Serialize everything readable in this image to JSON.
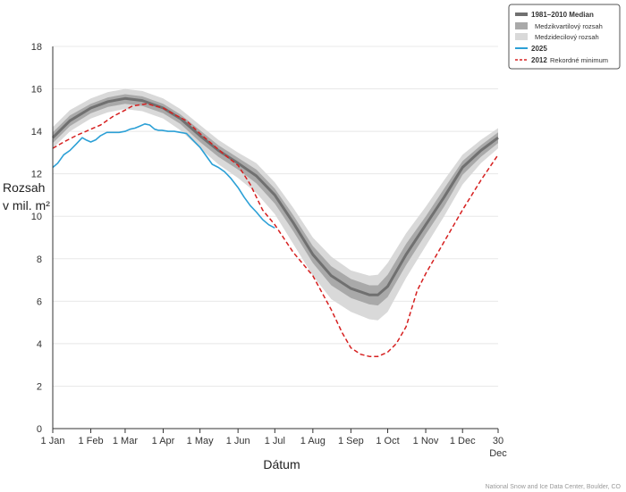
{
  "chart_data": {
    "type": "line",
    "ylabel_line1": "Rozsah",
    "ylabel_line2": "v mil. m²",
    "xlabel": "Dátum",
    "ylim": [
      0,
      18
    ],
    "grid": true,
    "legend_placement": "top-right",
    "y_ticks": [
      "0",
      "2",
      "4",
      "6",
      "8",
      "10",
      "12",
      "14",
      "16",
      "18"
    ],
    "x_ticks": [
      {
        "label": "1 Jan",
        "doy": 1
      },
      {
        "label": "1 Feb",
        "doy": 32
      },
      {
        "label": "1 Mar",
        "doy": 60
      },
      {
        "label": "1 Apr",
        "doy": 91
      },
      {
        "label": "1 May",
        "doy": 121
      },
      {
        "label": "1 Jun",
        "doy": 152
      },
      {
        "label": "1 Jul",
        "doy": 182
      },
      {
        "label": "1 Aug",
        "doy": 213
      },
      {
        "label": "1 Sep",
        "doy": 244
      },
      {
        "label": "1 Oct",
        "doy": 274
      },
      {
        "label": "1 Nov",
        "doy": 305
      },
      {
        "label": "1 Dec",
        "doy": 335
      },
      {
        "label": "30",
        "label2": "Dec",
        "doy": 364
      }
    ],
    "legend": {
      "median": "1981–2010 Median",
      "iqr": "Medzikvartilový rozsah",
      "idr": "Medzidecilový rozsah",
      "y2025": "2025",
      "y2012": "2012",
      "y2012_note": "Rekordné minimum"
    },
    "colors": {
      "median": "#707070",
      "iqr": "#a9a9a9",
      "idr": "#d9d9d9",
      "y2025": "#2ca0d6",
      "y2012": "#d62020",
      "grid": "#e8e8e8"
    },
    "series": [
      {
        "name": "1981–2010 Median",
        "x": [
          1,
          15,
          32,
          46,
          60,
          74,
          91,
          105,
          121,
          136,
          152,
          167,
          182,
          197,
          213,
          228,
          244,
          259,
          266,
          274,
          289,
          305,
          320,
          335,
          350,
          364
        ],
        "values": [
          13.7,
          14.5,
          15.1,
          15.4,
          15.55,
          15.45,
          15.1,
          14.6,
          13.8,
          13.1,
          12.5,
          11.9,
          11.0,
          9.7,
          8.2,
          7.2,
          6.6,
          6.3,
          6.3,
          6.7,
          8.2,
          9.6,
          10.9,
          12.3,
          13.1,
          13.7
        ]
      },
      {
        "name": "2025",
        "x": [
          1,
          5,
          10,
          15,
          20,
          25,
          28,
          32,
          36,
          40,
          45,
          50,
          55,
          60,
          64,
          68,
          72,
          76,
          80,
          84,
          87,
          90,
          95,
          100,
          105,
          110,
          115,
          121,
          126,
          131,
          136,
          141,
          146,
          152,
          157,
          162,
          167,
          172,
          177,
          182
        ],
        "values": [
          12.3,
          12.5,
          12.9,
          13.1,
          13.4,
          13.7,
          13.6,
          13.5,
          13.6,
          13.8,
          13.95,
          13.95,
          13.95,
          14.0,
          14.1,
          14.15,
          14.25,
          14.35,
          14.3,
          14.1,
          14.05,
          14.05,
          14.0,
          14.0,
          13.95,
          13.9,
          13.6,
          13.25,
          12.85,
          12.45,
          12.3,
          12.1,
          11.8,
          11.35,
          10.9,
          10.5,
          10.2,
          9.85,
          9.6,
          9.45
        ]
      },
      {
        "name": "2012",
        "x": [
          1,
          10,
          20,
          32,
          40,
          50,
          60,
          66,
          72,
          78,
          84,
          91,
          100,
          110,
          121,
          131,
          141,
          152,
          162,
          172,
          182,
          197,
          213,
          228,
          237,
          244,
          252,
          259,
          266,
          274,
          281,
          289,
          298,
          305,
          320,
          335,
          350,
          364
        ],
        "values": [
          13.2,
          13.5,
          13.8,
          14.1,
          14.3,
          14.7,
          15.0,
          15.2,
          15.25,
          15.3,
          15.2,
          15.1,
          14.8,
          14.5,
          13.9,
          13.4,
          12.9,
          12.4,
          11.5,
          10.3,
          9.6,
          8.3,
          7.2,
          5.6,
          4.5,
          3.8,
          3.5,
          3.4,
          3.4,
          3.6,
          4.0,
          4.8,
          6.5,
          7.3,
          8.8,
          10.3,
          11.7,
          12.9
        ]
      }
    ],
    "bands": {
      "x": [
        1,
        15,
        32,
        46,
        60,
        74,
        91,
        105,
        121,
        136,
        152,
        167,
        182,
        197,
        213,
        228,
        244,
        259,
        266,
        274,
        289,
        305,
        320,
        335,
        350,
        364
      ],
      "iqr_upper": [
        13.95,
        14.75,
        15.3,
        15.6,
        15.75,
        15.65,
        15.3,
        14.8,
        14.05,
        13.35,
        12.75,
        12.2,
        11.3,
        10.05,
        8.6,
        7.65,
        7.05,
        6.75,
        6.75,
        7.25,
        8.7,
        10.0,
        11.3,
        12.6,
        13.35,
        13.95
      ],
      "iqr_lower": [
        13.45,
        14.25,
        14.85,
        15.15,
        15.3,
        15.2,
        14.85,
        14.35,
        13.5,
        12.8,
        12.2,
        11.55,
        10.6,
        9.3,
        7.8,
        6.75,
        6.15,
        5.85,
        5.8,
        6.2,
        7.7,
        9.15,
        10.45,
        11.95,
        12.8,
        13.45
      ],
      "idr_upper": [
        14.2,
        15.0,
        15.55,
        15.85,
        16.0,
        15.9,
        15.55,
        15.05,
        14.3,
        13.6,
        13.0,
        12.5,
        11.6,
        10.4,
        9.0,
        8.1,
        7.45,
        7.2,
        7.25,
        7.8,
        9.2,
        10.45,
        11.7,
        12.9,
        13.6,
        14.15
      ],
      "idr_lower": [
        13.2,
        14.0,
        14.6,
        14.9,
        15.05,
        14.95,
        14.6,
        14.05,
        13.2,
        12.45,
        11.8,
        11.1,
        10.1,
        8.7,
        7.2,
        6.1,
        5.5,
        5.15,
        5.1,
        5.5,
        7.1,
        8.6,
        10.0,
        11.5,
        12.5,
        13.2
      ]
    }
  },
  "credit": "National Snow and Ice Data Center, Boulder, CO"
}
